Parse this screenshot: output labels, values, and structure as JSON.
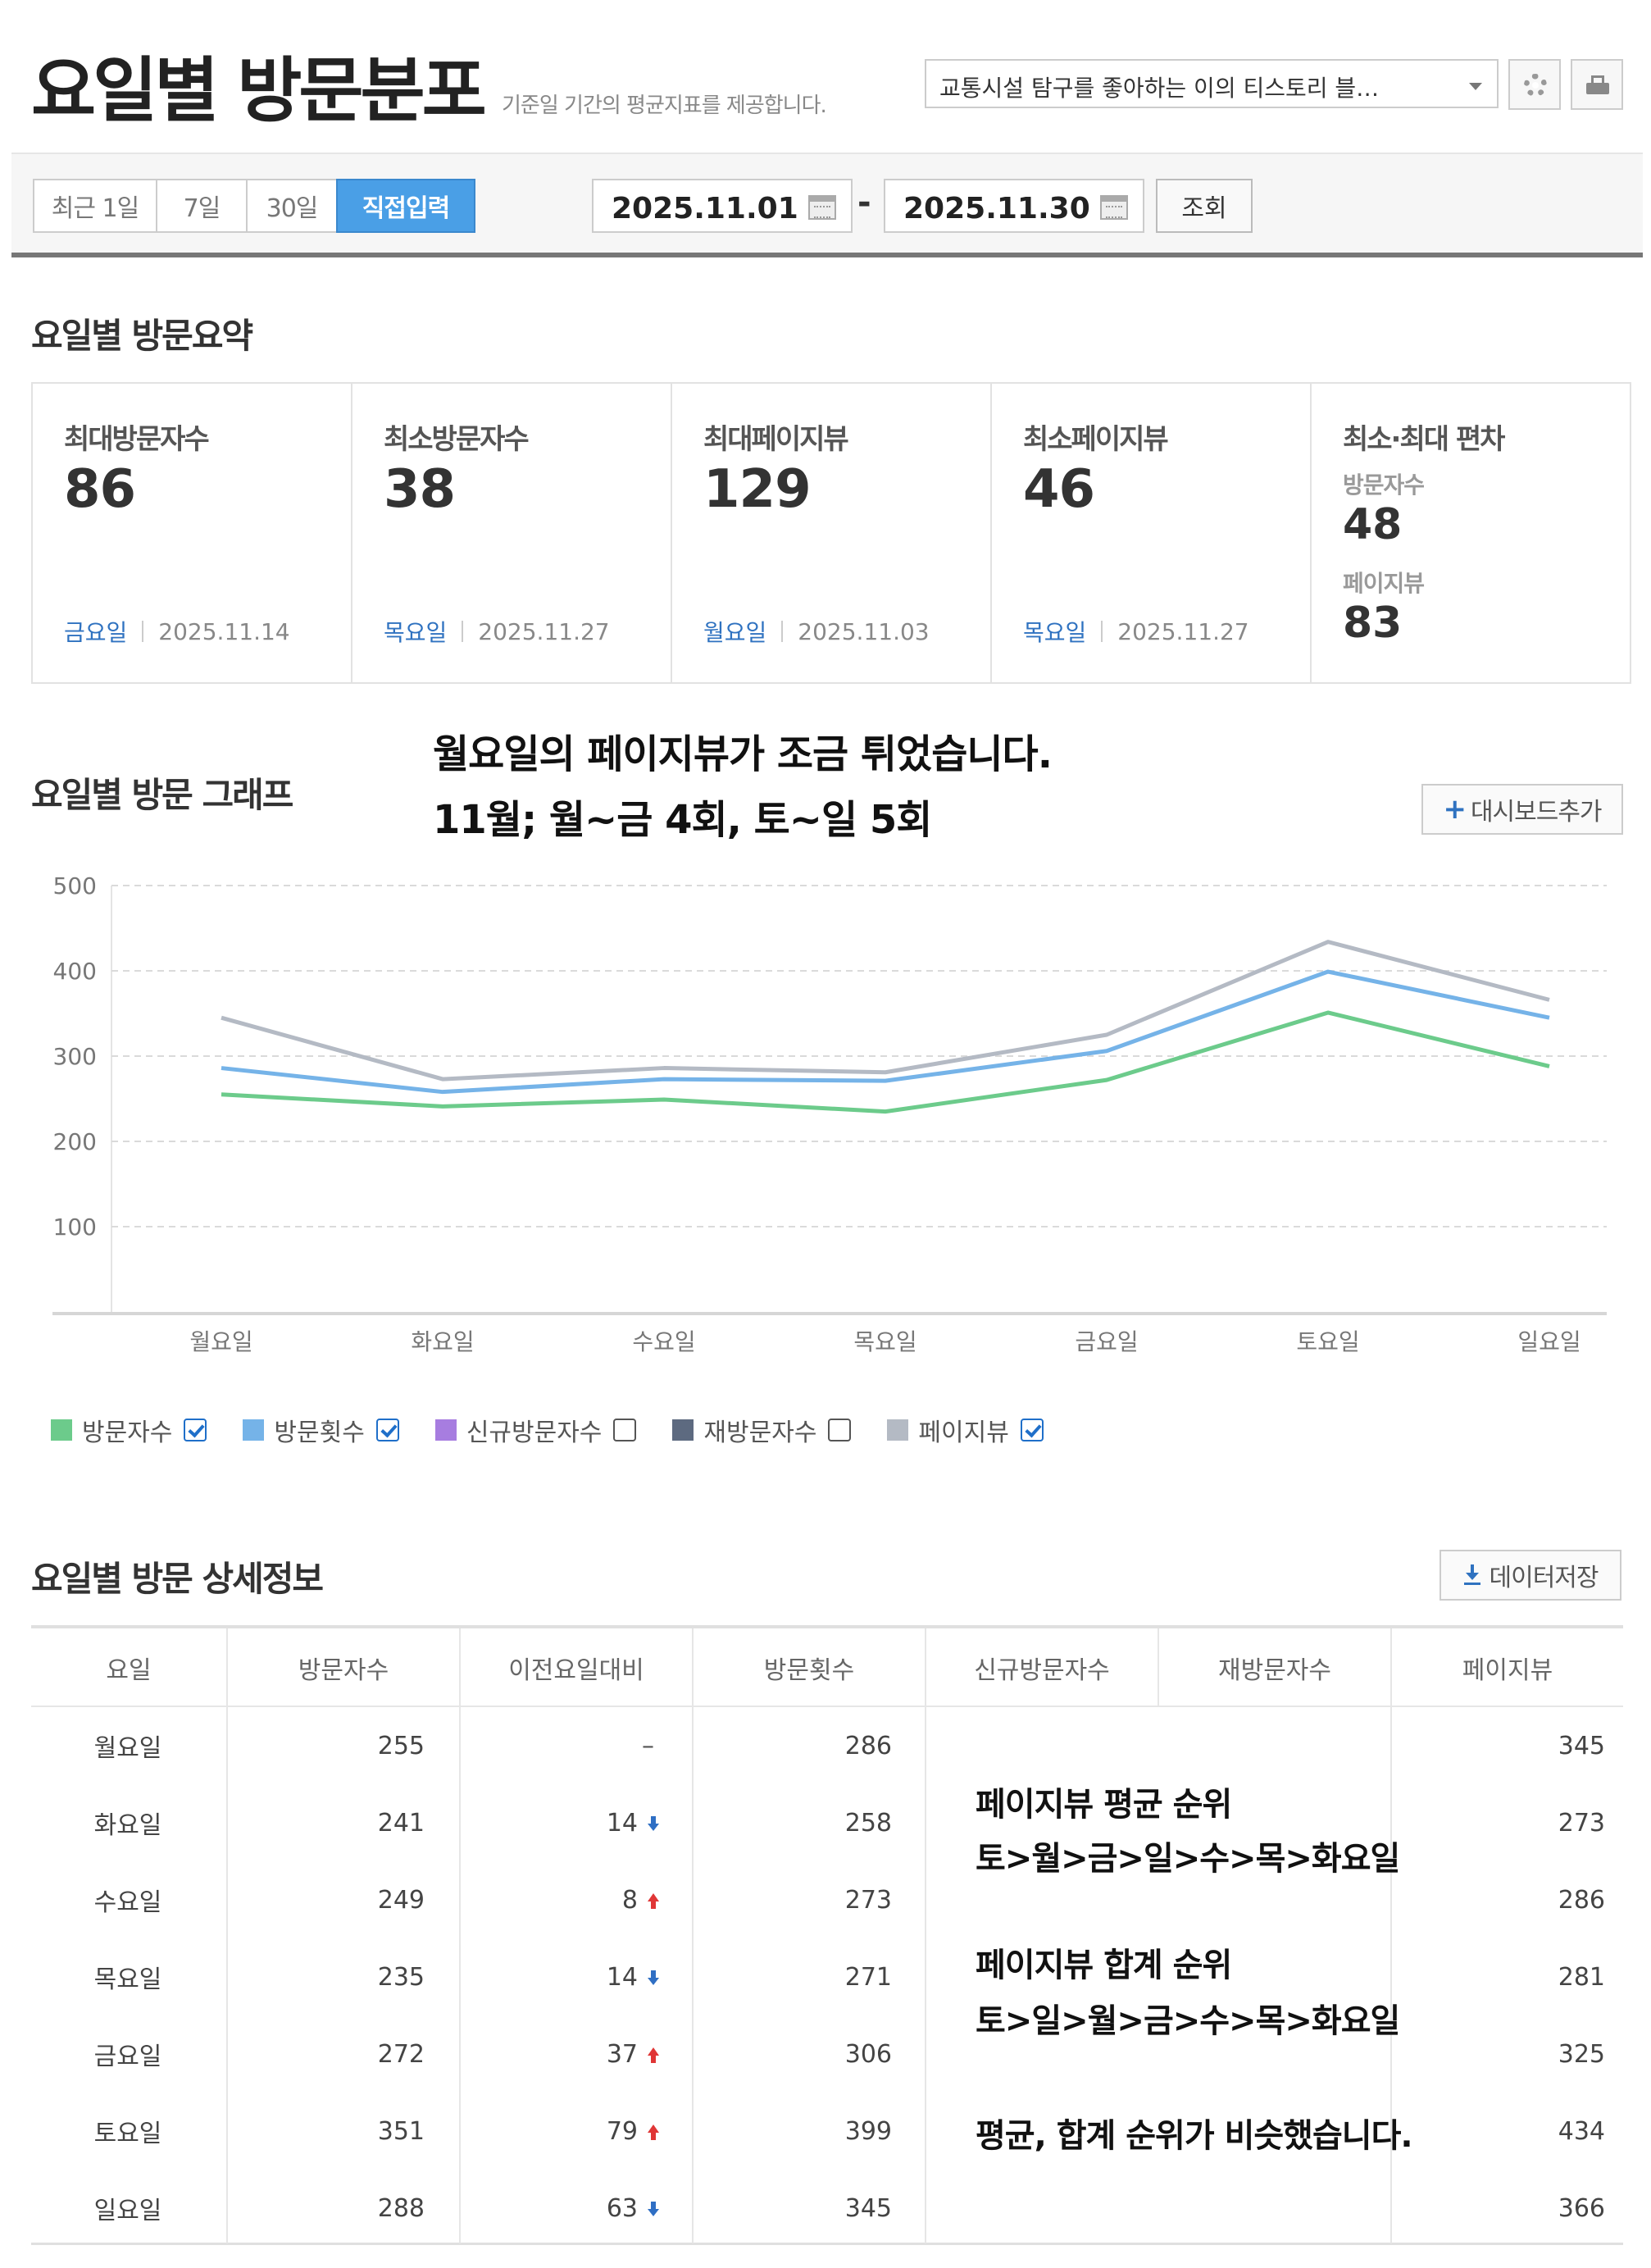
{
  "header": {
    "title": "요일별 방문분포",
    "subtitle": "기준일 기간의 평균지표를 제공합니다.",
    "blog_select": "교통시설 탐구를 좋아하는 이의 티스토리 블…"
  },
  "filter": {
    "ranges": [
      {
        "label": "최근 1일",
        "active": false
      },
      {
        "label": "7일",
        "active": false
      },
      {
        "label": "30일",
        "active": false
      },
      {
        "label": "직접입력",
        "active": true
      }
    ],
    "start_date": "2025.11.01",
    "separator": "-",
    "end_date": "2025.11.30",
    "search_label": "조회"
  },
  "summary": {
    "title": "요일별 방문요약",
    "cards": [
      {
        "label": "최대방문자수",
        "value": "86",
        "day": "금요일",
        "date": "2025.11.14"
      },
      {
        "label": "최소방문자수",
        "value": "38",
        "day": "목요일",
        "date": "2025.11.27"
      },
      {
        "label": "최대페이지뷰",
        "value": "129",
        "day": "월요일",
        "date": "2025.11.03"
      },
      {
        "label": "최소페이지뷰",
        "value": "46",
        "day": "목요일",
        "date": "2025.11.27"
      }
    ],
    "deviation": {
      "label": "최소·최대 편차",
      "visitors_label": "방문자수",
      "visitors_value": "48",
      "pageviews_label": "페이지뷰",
      "pageviews_value": "83"
    }
  },
  "graph": {
    "title": "요일별 방문 그래프",
    "note_line1": "월요일의 페이지뷰가 조금 튀었습니다.",
    "note_line2": "11월; 월~금 4회, 토~일 5회",
    "dashboard_button": "대시보드추가"
  },
  "legend": [
    {
      "label": "방문자수",
      "color": "#6ccb8b",
      "checked": true
    },
    {
      "label": "방문횟수",
      "color": "#75b3e8",
      "checked": true
    },
    {
      "label": "신규방문자수",
      "color": "#a77de0",
      "checked": false
    },
    {
      "label": "재방문자수",
      "color": "#5d6a80",
      "checked": false
    },
    {
      "label": "페이지뷰",
      "color": "#b4bac4",
      "checked": true
    }
  ],
  "chart_data": {
    "type": "line",
    "x": [
      "월요일",
      "화요일",
      "수요일",
      "목요일",
      "금요일",
      "토요일",
      "일요일"
    ],
    "ylim": [
      0,
      500
    ],
    "yticks": [
      "100",
      "200",
      "300",
      "400",
      "500"
    ],
    "grid": true,
    "series": [
      {
        "name": "방문자수",
        "color": "#6ccb8b",
        "values": [
          255,
          241,
          249,
          235,
          272,
          351,
          288
        ]
      },
      {
        "name": "방문횟수",
        "color": "#75b3e8",
        "values": [
          286,
          258,
          273,
          271,
          306,
          399,
          345
        ]
      },
      {
        "name": "페이지뷰",
        "color": "#b4bac4",
        "values": [
          345,
          273,
          286,
          281,
          325,
          434,
          366
        ]
      }
    ]
  },
  "detail": {
    "title": "요일별 방문 상세정보",
    "save_button": "데이터저장",
    "columns": [
      "요일",
      "방문자수",
      "이전요일대비",
      "방문횟수",
      "신규방문자수",
      "재방문자수",
      "페이지뷰"
    ],
    "rows": [
      {
        "day": "월요일",
        "visitors": "255",
        "diff": "",
        "trend": "none",
        "visits": "286",
        "pageviews": "345"
      },
      {
        "day": "화요일",
        "visitors": "241",
        "diff": "14",
        "trend": "down",
        "visits": "258",
        "pageviews": "273"
      },
      {
        "day": "수요일",
        "visitors": "249",
        "diff": "8",
        "trend": "up",
        "visits": "273",
        "pageviews": "286"
      },
      {
        "day": "목요일",
        "visitors": "235",
        "diff": "14",
        "trend": "down",
        "visits": "271",
        "pageviews": "281"
      },
      {
        "day": "금요일",
        "visitors": "272",
        "diff": "37",
        "trend": "up",
        "visits": "306",
        "pageviews": "325"
      },
      {
        "day": "토요일",
        "visitors": "351",
        "diff": "79",
        "trend": "up",
        "visits": "399",
        "pageviews": "434"
      },
      {
        "day": "일요일",
        "visitors": "288",
        "diff": "63",
        "trend": "down",
        "visits": "345",
        "pageviews": "366"
      }
    ],
    "notes": {
      "avg_title": "페이지뷰 평균 순위",
      "avg_rank": "토>월>금>일>수>목>화요일",
      "sum_title": "페이지뷰 합계 순위",
      "sum_rank": "토>일>월>금>수>목>화요일",
      "conclusion": "평균, 합계 순위가 비슷했습니다."
    }
  }
}
